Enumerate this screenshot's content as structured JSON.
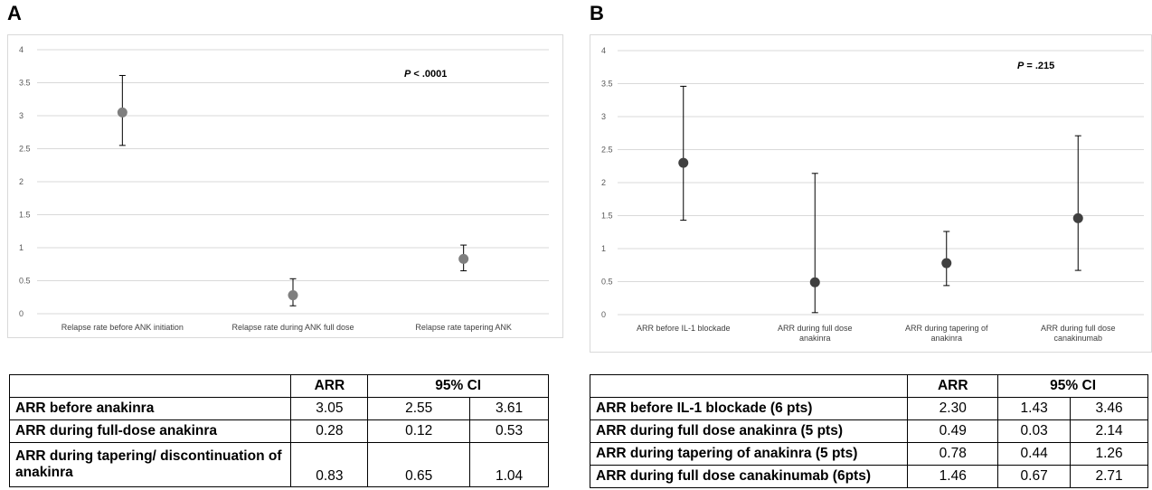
{
  "panels": [
    {
      "letter": "A",
      "p_label": "P",
      "p_rest": " < .0001",
      "chart_data": {
        "type": "scatter",
        "title": "",
        "xlabel": "",
        "ylabel": "",
        "ylim": [
          0,
          4
        ],
        "yticks": [
          "0",
          "0.5",
          "1",
          "1.5",
          "2",
          "2.5",
          "3",
          "3.5",
          "4"
        ],
        "grid": true,
        "categories": [
          "Relapse rate before ANK initiation",
          "Relapse rate during ANK full dose",
          "Relapse rate tapering ANK"
        ],
        "values": [
          3.05,
          0.28,
          0.83
        ],
        "lower": [
          2.55,
          0.12,
          0.65
        ],
        "upper": [
          3.61,
          0.53,
          1.04
        ]
      },
      "table": {
        "headers": [
          "",
          "ARR",
          "95% CI"
        ],
        "rows": [
          {
            "label": "ARR before anakinra",
            "arr": "3.05",
            "lo": "2.55",
            "hi": "3.61"
          },
          {
            "label": "ARR during full-dose anakinra",
            "arr": "0.28",
            "lo": "0.12",
            "hi": "0.53"
          },
          {
            "label": "ARR during tapering/ discontinuation of anakinra",
            "arr": "0.83",
            "lo": "0.65",
            "hi": "1.04"
          }
        ]
      }
    },
    {
      "letter": "B",
      "p_label": "P",
      "p_rest": " = .215",
      "chart_data": {
        "type": "scatter",
        "title": "",
        "xlabel": "",
        "ylabel": "",
        "ylim": [
          0,
          4
        ],
        "yticks": [
          "0",
          "0.5",
          "1",
          "1.5",
          "2",
          "2.5",
          "3",
          "3.5",
          "4"
        ],
        "grid": true,
        "categories": [
          "ARR before IL-1 blockade",
          "ARR during full dose anakinra",
          "ARR during tapering of anakinra",
          "ARR during full dose canakinumab"
        ],
        "values": [
          2.3,
          0.49,
          0.78,
          1.46
        ],
        "lower": [
          1.43,
          0.03,
          0.44,
          0.67
        ],
        "upper": [
          3.46,
          2.14,
          1.26,
          2.71
        ]
      },
      "table": {
        "headers": [
          "",
          "ARR",
          "95% CI"
        ],
        "rows": [
          {
            "label": "ARR before IL-1 blockade (6 pts)",
            "arr": "2.30",
            "lo": "1.43",
            "hi": "3.46"
          },
          {
            "label": "ARR during full dose anakinra (5 pts)",
            "arr": "0.49",
            "lo": "0.03",
            "hi": "2.14"
          },
          {
            "label": "ARR during tapering of anakinra (5 pts)",
            "arr": "0.78",
            "lo": "0.44",
            "hi": "1.26"
          },
          {
            "label": "ARR during full dose canakinumab (6pts)",
            "arr": "1.46",
            "lo": "0.67",
            "hi": "2.71"
          }
        ]
      }
    }
  ],
  "colors": {
    "point_a": "#7f7f7f",
    "point_b": "#404040",
    "gridline": "#d9d9d9",
    "errorbar": "#000000"
  }
}
